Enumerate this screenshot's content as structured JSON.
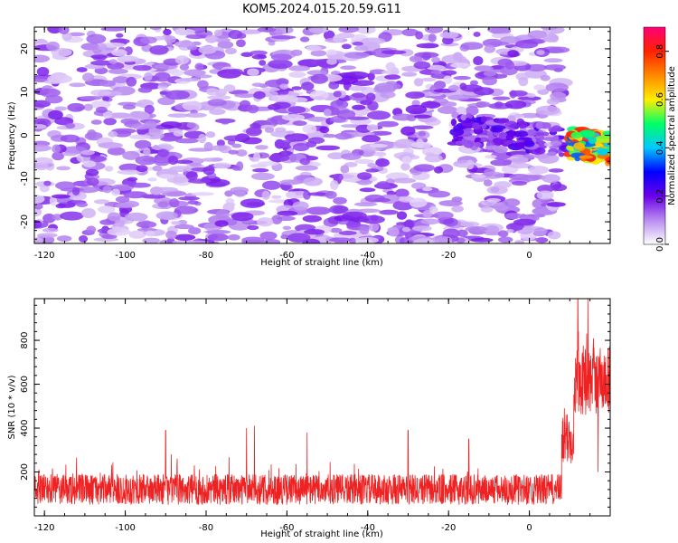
{
  "title": "KOM5.2024.015.20.59.G11",
  "chart_data": [
    {
      "type": "heatmap",
      "xlabel": "Height of straight line (km)",
      "ylabel": "Frequency (Hz)",
      "xlim": [
        -122.5,
        20
      ],
      "ylim": [
        -25,
        25
      ],
      "x_ticks": [
        -120,
        -100,
        -80,
        -60,
        -40,
        -20,
        0
      ],
      "y_ticks": [
        -20,
        -10,
        0,
        10,
        20
      ],
      "colorbar": {
        "label": "Normalized spectral amplitude",
        "range": [
          0,
          0.9
        ],
        "ticks": [
          0.0,
          0.2,
          0.4,
          0.6,
          0.8
        ],
        "colors": [
          "#ffffff",
          "#b98cf0",
          "#6a00e8",
          "#0000ff",
          "#00c8ff",
          "#00ff66",
          "#ffee00",
          "#ff8800",
          "#ff2200",
          "#ff0077"
        ]
      },
      "features": [
        {
          "description_key": "background",
          "level": 0.15
        },
        {
          "x_range": [
            -20,
            10
          ],
          "y_center": 1.5,
          "level": 0.25
        },
        {
          "x_range": [
            10,
            20
          ],
          "y_center": -2,
          "level": 0.85
        }
      ]
    },
    {
      "type": "line",
      "xlabel": "Height of straight line (km)",
      "ylabel": "SNR (10 * v/v)",
      "xlim": [
        -122.5,
        20
      ],
      "ylim": [
        0,
        990
      ],
      "x_ticks": [
        -120,
        -100,
        -80,
        -60,
        -40,
        -20,
        0
      ],
      "y_ticks": [
        200,
        400,
        600,
        800
      ],
      "color": "#ee2222",
      "segments": [
        {
          "x_range": [
            -122.5,
            8
          ],
          "mean": 120,
          "spread": 70,
          "spikes": [
            {
              "x": -90,
              "y": 390
            },
            {
              "x": -70,
              "y": 400
            },
            {
              "x": -68,
              "y": 410
            },
            {
              "x": -55,
              "y": 380
            },
            {
              "x": -30,
              "y": 390
            },
            {
              "x": -15,
              "y": 350
            }
          ]
        },
        {
          "x_range": [
            8,
            11
          ],
          "mean": 350,
          "spread": 120
        },
        {
          "x_range": [
            11,
            20
          ],
          "mean": 620,
          "spread": 160,
          "spikes": [
            {
              "x": 12,
              "y": 990
            },
            {
              "x": 14.5,
              "y": 990
            },
            {
              "x": 17,
              "y": 200
            }
          ]
        }
      ]
    }
  ]
}
